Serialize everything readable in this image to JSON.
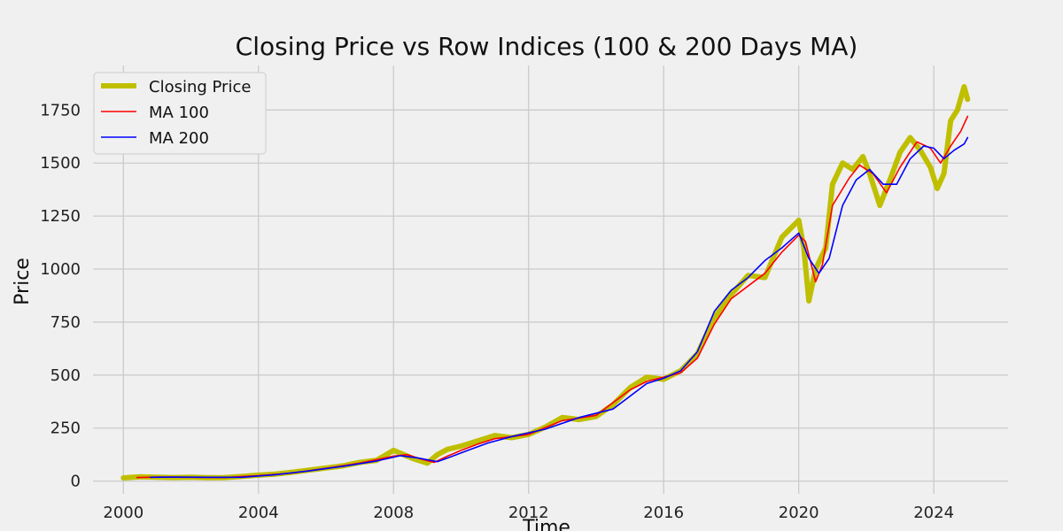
{
  "chart_data": {
    "type": "line",
    "title": "Closing Price vs Row Indices (100 & 200 Days MA)",
    "xlabel": "Time",
    "ylabel": "Price",
    "xlim": [
      1999.1,
      2026.2
    ],
    "ylim": [
      -60,
      1960
    ],
    "xticks": [
      2000,
      2004,
      2008,
      2012,
      2016,
      2020,
      2024
    ],
    "xtick_labels": [
      "2000",
      "2004",
      "2008",
      "2012",
      "2016",
      "2020",
      "2024"
    ],
    "yticks": [
      0,
      250,
      500,
      750,
      1000,
      1250,
      1500,
      1750
    ],
    "ytick_labels": [
      "0",
      "250",
      "500",
      "750",
      "1000",
      "1250",
      "1500",
      "1750"
    ],
    "grid": true,
    "legend_position": "top-left",
    "series": [
      {
        "name": "Closing Price",
        "color": "#bfbf00",
        "x": [
          2000.0,
          2000.5,
          2001.0,
          2001.5,
          2002.0,
          2002.5,
          2003.0,
          2003.5,
          2004.0,
          2004.5,
          2005.0,
          2005.5,
          2006.0,
          2006.5,
          2007.0,
          2007.5,
          2008.0,
          2008.3,
          2008.6,
          2009.0,
          2009.3,
          2009.6,
          2010.0,
          2010.5,
          2011.0,
          2011.5,
          2012.0,
          2012.5,
          2013.0,
          2013.5,
          2014.0,
          2014.5,
          2015.0,
          2015.5,
          2016.0,
          2016.5,
          2017.0,
          2017.5,
          2018.0,
          2018.5,
          2019.0,
          2019.5,
          2020.0,
          2020.15,
          2020.3,
          2020.5,
          2020.8,
          2021.0,
          2021.3,
          2021.6,
          2021.9,
          2022.1,
          2022.4,
          2022.7,
          2023.0,
          2023.3,
          2023.6,
          2023.9,
          2024.1,
          2024.3,
          2024.5,
          2024.7,
          2024.9,
          2025.0
        ],
        "values": [
          15,
          20,
          18,
          17,
          18,
          16,
          17,
          22,
          28,
          33,
          42,
          52,
          62,
          72,
          88,
          98,
          145,
          125,
          105,
          85,
          125,
          150,
          165,
          190,
          215,
          205,
          220,
          255,
          300,
          290,
          305,
          360,
          440,
          490,
          480,
          520,
          600,
          770,
          880,
          970,
          960,
          1150,
          1230,
          1100,
          850,
          1000,
          1100,
          1400,
          1500,
          1470,
          1530,
          1450,
          1300,
          1420,
          1550,
          1620,
          1560,
          1480,
          1380,
          1450,
          1700,
          1750,
          1860,
          1800
        ]
      },
      {
        "name": "MA 100",
        "color": "#ff0000",
        "x": [
          2000.4,
          2001.0,
          2002.0,
          2003.0,
          2004.0,
          2005.0,
          2006.0,
          2007.0,
          2008.0,
          2008.4,
          2008.8,
          2009.2,
          2009.6,
          2010.0,
          2010.5,
          2011.0,
          2012.0,
          2013.0,
          2014.0,
          2015.0,
          2015.5,
          2016.0,
          2016.5,
          2017.0,
          2017.5,
          2018.0,
          2018.5,
          2019.0,
          2019.5,
          2020.0,
          2020.2,
          2020.5,
          2020.7,
          2021.0,
          2021.5,
          2021.8,
          2022.2,
          2022.6,
          2023.0,
          2023.5,
          2023.9,
          2024.2,
          2024.5,
          2024.8,
          2025.0
        ],
        "values": [
          17,
          19,
          18,
          17,
          26,
          38,
          60,
          85,
          118,
          125,
          105,
          88,
          118,
          145,
          175,
          200,
          220,
          285,
          310,
          430,
          470,
          490,
          510,
          580,
          740,
          860,
          920,
          980,
          1080,
          1160,
          1130,
          940,
          1020,
          1300,
          1430,
          1490,
          1450,
          1360,
          1480,
          1600,
          1570,
          1500,
          1580,
          1650,
          1720
        ]
      },
      {
        "name": "MA 200",
        "color": "#0000ff",
        "x": [
          2000.8,
          2001.5,
          2002.5,
          2003.5,
          2004.5,
          2005.5,
          2006.5,
          2007.5,
          2008.2,
          2008.7,
          2009.3,
          2009.7,
          2010.2,
          2010.8,
          2011.5,
          2012.5,
          2013.5,
          2014.5,
          2015.5,
          2016.0,
          2016.5,
          2017.0,
          2017.5,
          2018.0,
          2018.5,
          2019.0,
          2019.5,
          2020.0,
          2020.3,
          2020.6,
          2020.9,
          2021.3,
          2021.7,
          2022.1,
          2022.5,
          2022.9,
          2023.3,
          2023.7,
          2024.0,
          2024.3,
          2024.6,
          2024.9,
          2025.0
        ],
        "values": [
          18,
          19,
          18,
          18,
          30,
          48,
          70,
          95,
          120,
          110,
          92,
          115,
          145,
          180,
          210,
          245,
          300,
          340,
          460,
          485,
          520,
          610,
          800,
          900,
          960,
          1040,
          1100,
          1170,
          1050,
          980,
          1050,
          1300,
          1420,
          1470,
          1400,
          1400,
          1520,
          1580,
          1570,
          1520,
          1560,
          1590,
          1620
        ]
      }
    ]
  }
}
